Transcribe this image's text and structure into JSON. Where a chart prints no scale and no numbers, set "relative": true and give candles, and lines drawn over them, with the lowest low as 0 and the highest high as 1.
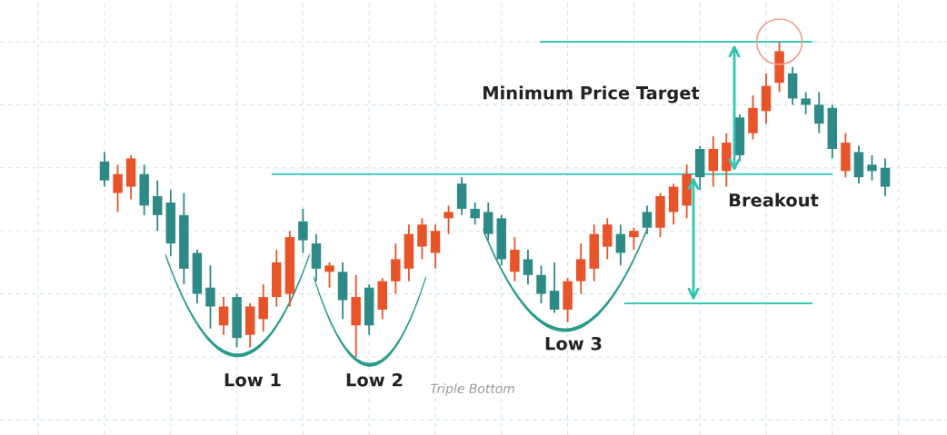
{
  "chart_data": {
    "type": "candlestick",
    "relative": true,
    "grid": true,
    "categories": [
      null,
      null,
      null,
      null,
      null,
      null,
      null,
      null,
      null,
      null,
      null,
      null,
      null,
      null,
      null,
      null,
      null,
      null,
      null,
      null,
      null,
      null,
      null,
      null,
      null,
      null,
      null,
      null,
      null,
      null,
      null,
      null,
      null,
      null,
      null,
      null,
      null,
      null,
      null,
      null,
      null,
      null,
      null,
      null,
      null,
      null,
      null,
      null,
      null,
      null,
      null,
      null,
      null,
      null,
      null,
      null,
      null,
      null,
      null,
      null
    ],
    "ohlc": [
      [
        0.62,
        0.65,
        0.54,
        0.56
      ],
      [
        0.52,
        0.61,
        0.46,
        0.58
      ],
      [
        0.54,
        0.64,
        0.5,
        0.63
      ],
      [
        0.58,
        0.61,
        0.45,
        0.48
      ],
      [
        0.51,
        0.56,
        0.4,
        0.45
      ],
      [
        0.49,
        0.53,
        0.32,
        0.36
      ],
      [
        0.45,
        0.52,
        0.23,
        0.28
      ],
      [
        0.33,
        0.34,
        0.17,
        0.2
      ],
      [
        0.22,
        0.29,
        0.09,
        0.16
      ],
      [
        0.1,
        0.19,
        0.07,
        0.16
      ],
      [
        0.19,
        0.2,
        0.03,
        0.06
      ],
      [
        0.07,
        0.17,
        0.03,
        0.16
      ],
      [
        0.12,
        0.23,
        0.08,
        0.19
      ],
      [
        0.19,
        0.34,
        0.16,
        0.3
      ],
      [
        0.2,
        0.4,
        0.16,
        0.38
      ],
      [
        0.43,
        0.47,
        0.33,
        0.37
      ],
      [
        0.36,
        0.39,
        0.24,
        0.28
      ],
      [
        0.27,
        0.3,
        0.22,
        0.29
      ],
      [
        0.27,
        0.3,
        0.12,
        0.18
      ],
      [
        0.1,
        0.26,
        0.0,
        0.19
      ],
      [
        0.22,
        0.23,
        0.07,
        0.1
      ],
      [
        0.15,
        0.25,
        0.12,
        0.24
      ],
      [
        0.24,
        0.36,
        0.2,
        0.31
      ],
      [
        0.28,
        0.42,
        0.24,
        0.39
      ],
      [
        0.35,
        0.44,
        0.31,
        0.42
      ],
      [
        0.33,
        0.42,
        0.28,
        0.4
      ],
      [
        0.44,
        0.48,
        0.39,
        0.46
      ],
      [
        0.55,
        0.57,
        0.45,
        0.47
      ],
      [
        0.47,
        0.49,
        0.42,
        0.44
      ],
      [
        0.46,
        0.49,
        0.37,
        0.39
      ],
      [
        0.44,
        0.45,
        0.29,
        0.31
      ],
      [
        0.27,
        0.38,
        0.24,
        0.34
      ],
      [
        0.31,
        0.34,
        0.23,
        0.26
      ],
      [
        0.26,
        0.29,
        0.17,
        0.2
      ],
      [
        0.21,
        0.3,
        0.14,
        0.15
      ],
      [
        0.15,
        0.25,
        0.11,
        0.24
      ],
      [
        0.24,
        0.36,
        0.2,
        0.31
      ],
      [
        0.28,
        0.42,
        0.24,
        0.39
      ],
      [
        0.35,
        0.44,
        0.31,
        0.42
      ],
      [
        0.39,
        0.42,
        0.29,
        0.33
      ],
      [
        0.38,
        0.41,
        0.34,
        0.4
      ],
      [
        0.46,
        0.48,
        0.39,
        0.41
      ],
      [
        0.41,
        0.52,
        0.38,
        0.51
      ],
      [
        0.46,
        0.55,
        0.42,
        0.54
      ],
      [
        0.48,
        0.61,
        0.44,
        0.58
      ],
      [
        0.66,
        0.67,
        0.53,
        0.57
      ],
      [
        0.59,
        0.7,
        0.54,
        0.66
      ],
      [
        0.59,
        0.71,
        0.54,
        0.68
      ],
      [
        0.76,
        0.77,
        0.62,
        0.64
      ],
      [
        0.71,
        0.83,
        0.69,
        0.79
      ],
      [
        0.78,
        0.9,
        0.74,
        0.86
      ],
      [
        0.87,
        1.0,
        0.84,
        0.97
      ],
      [
        0.9,
        0.92,
        0.8,
        0.82
      ],
      [
        0.82,
        0.84,
        0.77,
        0.8
      ],
      [
        0.8,
        0.84,
        0.71,
        0.74
      ],
      [
        0.79,
        0.8,
        0.63,
        0.66
      ],
      [
        0.59,
        0.71,
        0.57,
        0.68
      ],
      [
        0.65,
        0.67,
        0.55,
        0.57
      ],
      [
        0.61,
        0.64,
        0.56,
        0.59
      ],
      [
        0.6,
        0.63,
        0.51,
        0.54
      ]
    ],
    "colors": [
      "#2e8a86",
      "#e8542a",
      "#e8542a",
      "#2e8a86",
      "#2e8a86",
      "#2e8a86",
      "#2e8a86",
      "#2e8a86",
      "#2e8a86",
      "#e8542a",
      "#2e8a86",
      "#e8542a",
      "#e8542a",
      "#e8542a",
      "#e8542a",
      "#2e8a86",
      "#2e8a86",
      "#e8542a",
      "#2e8a86",
      "#e8542a",
      "#2e8a86",
      "#e8542a",
      "#e8542a",
      "#e8542a",
      "#e8542a",
      "#e8542a",
      "#e8542a",
      "#2e8a86",
      "#2e8a86",
      "#2e8a86",
      "#2e8a86",
      "#e8542a",
      "#2e8a86",
      "#2e8a86",
      "#2e8a86",
      "#e8542a",
      "#e8542a",
      "#e8542a",
      "#e8542a",
      "#2e8a86",
      "#e8542a",
      "#2e8a86",
      "#e8542a",
      "#e8542a",
      "#e8542a",
      "#2e8a86",
      "#e8542a",
      "#e8542a",
      "#2e8a86",
      "#e8542a",
      "#e8542a",
      "#e8542a",
      "#2e8a86",
      "#2e8a86",
      "#2e8a86",
      "#2e8a86",
      "#e8542a",
      "#2e8a86",
      "#2e8a86",
      "#2e8a86"
    ],
    "ref_lines": [
      {
        "axis": "y",
        "value": 0.58,
        "color": "#3cc8b8"
      },
      {
        "axis": "y",
        "value": 1.0,
        "color": "#3cc8b8"
      },
      {
        "axis": "y",
        "value": 0.17,
        "color": "#3cc8b8"
      }
    ],
    "annotations": [
      "Minimum Price Target",
      "Breakout",
      "Low 1",
      "Low 2",
      "Low 3",
      "Triple Bottom"
    ]
  }
}
